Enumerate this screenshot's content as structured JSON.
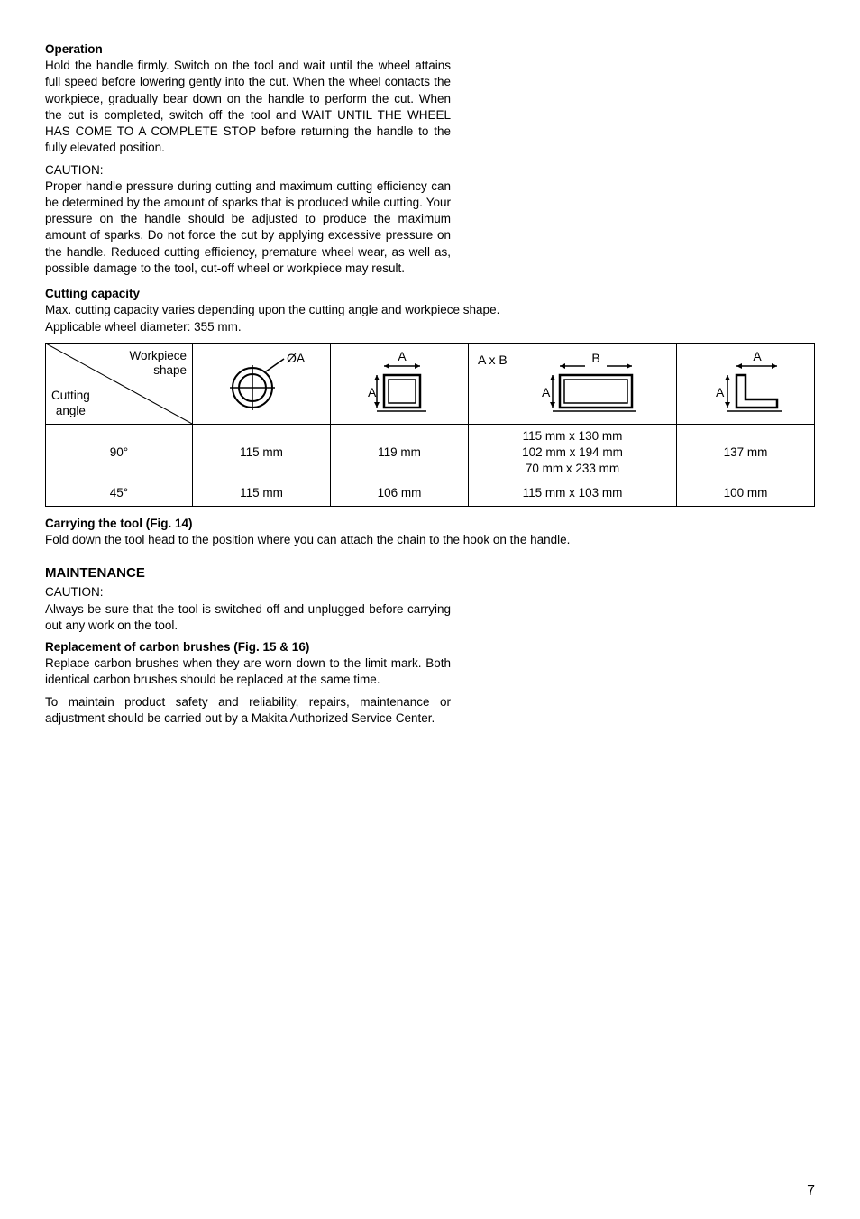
{
  "operation": {
    "heading": "Operation",
    "body": "Hold the handle firmly. Switch on the tool and wait until the wheel attains full speed before lowering gently into the cut. When the wheel contacts the workpiece, gradually bear down on the handle to perform the cut. When the cut is completed, switch off the tool and WAIT UNTIL THE WHEEL HAS COME TO A COMPLETE STOP before returning the handle to the fully elevated position.",
    "caution_label": "CAUTION:",
    "caution_body": "Proper handle pressure during cutting and maximum cutting efficiency can be determined by the amount of sparks that is produced while cutting. Your pressure on the handle should be adjusted to produce the maximum amount of sparks. Do not force the cut by applying excessive pressure on the handle. Reduced cutting efficiency, premature wheel wear, as well as, possible damage to the tool, cut-off wheel or workpiece may result."
  },
  "capacity": {
    "heading": "Cutting capacity",
    "intro1": "Max. cutting capacity varies depending upon the cutting angle and workpiece shape.",
    "intro2": "Applicable wheel diameter: 355 mm.",
    "header_top": "Workpiece shape",
    "header_bottom": "Cutting angle",
    "col2_label": "ØA",
    "col3_label": "A",
    "col4_label": "A x B",
    "col5_label": "A",
    "row1_angle": "90°",
    "row1_c2": "115 mm",
    "row1_c3": "119 mm",
    "row1_c4_l1": "115 mm x 130 mm",
    "row1_c4_l2": "102 mm x 194 mm",
    "row1_c4_l3": "70 mm x 233 mm",
    "row1_c5": "137 mm",
    "row2_angle": "45°",
    "row2_c2": "115 mm",
    "row2_c3": "106 mm",
    "row2_c4": "115 mm x 103 mm",
    "row2_c5": "100 mm"
  },
  "carrying": {
    "heading": "Carrying the tool (Fig. 14)",
    "body": "Fold down the tool head to the position where you can attach the chain to the hook on the handle."
  },
  "maintenance": {
    "heading": "MAINTENANCE",
    "caution_label": "CAUTION:",
    "caution_body": "Always be sure that the tool is switched off and unplugged before carrying out any work on the tool.",
    "brushes_heading": "Replacement of carbon brushes (Fig. 15 & 16)",
    "brushes_body": "Replace carbon brushes when they are worn down to the limit mark. Both identical carbon brushes should be replaced at the same time.",
    "safety_body": "To maintain product safety and reliability, repairs, maintenance or adjustment should be carried out by a Makita Authorized Service Center."
  },
  "page_number": "7"
}
